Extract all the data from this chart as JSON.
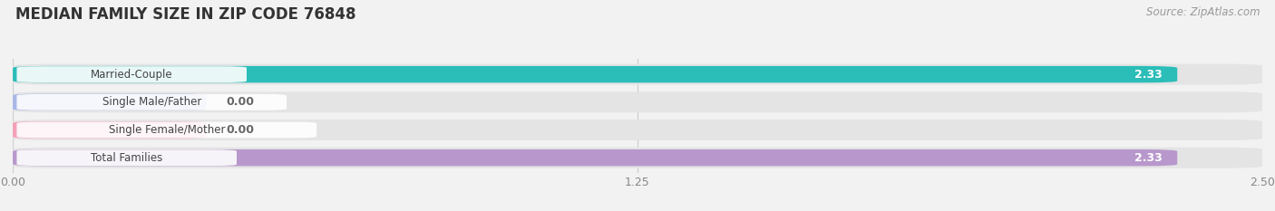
{
  "title": "MEDIAN FAMILY SIZE IN ZIP CODE 76848",
  "source": "Source: ZipAtlas.com",
  "categories": [
    "Married-Couple",
    "Single Male/Father",
    "Single Female/Mother",
    "Total Families"
  ],
  "values": [
    2.33,
    0.0,
    0.0,
    2.33
  ],
  "bar_colors": [
    "#2bbdb8",
    "#aab8e8",
    "#f4a0b8",
    "#b898cc"
  ],
  "xlim": [
    0,
    2.5
  ],
  "xticks": [
    0.0,
    1.25,
    2.5
  ],
  "background_color": "#f2f2f2",
  "title_fontsize": 12,
  "source_fontsize": 8.5
}
